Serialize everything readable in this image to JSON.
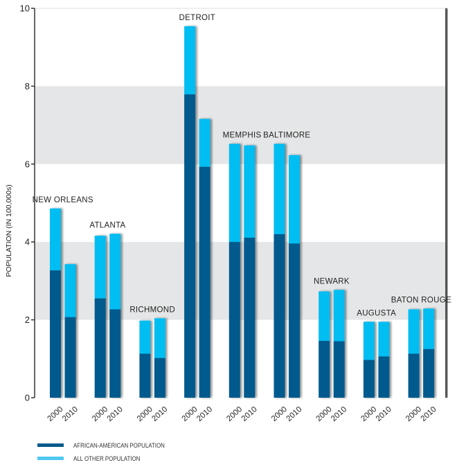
{
  "chart_data": {
    "type": "bar",
    "stacked": true,
    "title": "",
    "xlabel": "",
    "ylabel": "POPULATION (IN 100,000s)",
    "ylim": [
      0,
      10
    ],
    "yticks": [
      "0",
      "2",
      "4",
      "6",
      "8",
      "10"
    ],
    "grid": "alternating shaded bands (2–4 and 6–8)",
    "categories": [
      "NEW ORLEANS",
      "ATLANTA",
      "RICHMOND",
      "DETROIT",
      "MEMPHIS",
      "BALTIMORE",
      "NEWARK",
      "AUGUSTA",
      "BATON ROUGE"
    ],
    "years": [
      "2000",
      "2010"
    ],
    "series": [
      {
        "name": "AFRICAN-AMERICAN POPULATION",
        "color": "#045a8d",
        "values": {
          "2000": [
            3.27,
            2.55,
            1.13,
            7.79,
            4.0,
            4.2,
            1.46,
            0.97,
            1.13
          ],
          "2010": [
            2.07,
            2.27,
            1.02,
            5.93,
            4.11,
            3.96,
            1.45,
            1.06,
            1.25
          ]
        }
      },
      {
        "name": "ALL OTHER POPULATION",
        "color": "#00bdf2",
        "values": {
          "2000": [
            1.59,
            1.61,
            0.85,
            1.75,
            2.52,
            2.32,
            1.27,
            0.98,
            1.14
          ],
          "2010": [
            1.36,
            1.94,
            1.02,
            1.23,
            2.37,
            2.27,
            1.32,
            0.89,
            1.04
          ]
        }
      }
    ],
    "totals": {
      "2000": [
        4.86,
        4.16,
        1.98,
        9.54,
        6.52,
        6.52,
        2.73,
        1.95,
        2.27
      ],
      "2010": [
        3.43,
        4.21,
        2.04,
        7.16,
        6.48,
        6.23,
        2.77,
        1.95,
        2.29
      ]
    },
    "legend_position": "bottom-left"
  },
  "legend": {
    "items": [
      {
        "label": "AFRICAN-AMERICAN POPULATION",
        "color": "#045a8d"
      },
      {
        "label": "ALL OTHER POPULATION",
        "color": "#4fc8f2"
      }
    ]
  }
}
